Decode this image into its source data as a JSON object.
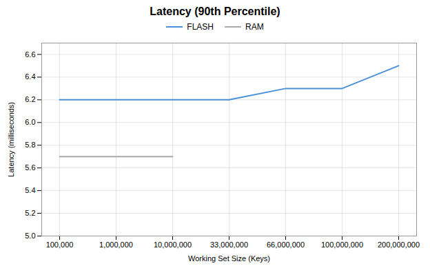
{
  "chart_data": {
    "type": "line",
    "title": "Latency (90th Percentile)",
    "xlabel": "Working Set Size (Keys)",
    "ylabel": "Latency (milliseconds)",
    "categories": [
      "100,000",
      "1,000,000",
      "10,000,000",
      "33,000,000",
      "66,000,000",
      "100,000,000",
      "200,000,000"
    ],
    "series": [
      {
        "name": "FLASH",
        "color": "#4a90d9",
        "values": [
          6.2,
          6.2,
          6.2,
          6.2,
          6.3,
          6.3,
          6.5
        ]
      },
      {
        "name": "RAM",
        "color": "#aaaaaa",
        "values": [
          5.7,
          5.7,
          5.7,
          null,
          null,
          null,
          null
        ]
      }
    ],
    "ylim": [
      5.0,
      6.7
    ],
    "yticks": [
      {
        "value": 5.0,
        "label": "5.0"
      },
      5.2,
      5.4,
      5.6,
      5.8,
      {
        "value": 6.0,
        "label": "6.0"
      },
      6.2,
      6.4,
      6.6
    ],
    "grid": true,
    "legend": "top"
  }
}
